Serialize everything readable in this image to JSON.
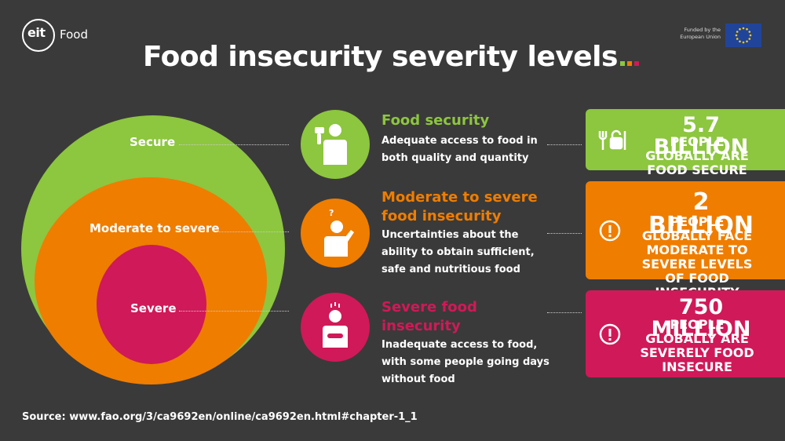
{
  "logo": {
    "mark": "eit",
    "text": "Food"
  },
  "eu": {
    "funded_text": "Funded by the European Union",
    "flag_icon": "eu-flag-icon"
  },
  "title": {
    "text": "Food insecurity severity levels",
    "dot_colors": [
      "#8dc63f",
      "#ef7d00",
      "#d01958"
    ]
  },
  "circles": {
    "secure": {
      "label": "Secure",
      "color": "#8dc63f"
    },
    "moderate": {
      "label": "Moderate to severe",
      "color": "#ef7d00"
    },
    "severe": {
      "label": "Severe",
      "color": "#d01958"
    }
  },
  "levels": [
    {
      "heading": "Food security",
      "description": "Adequate access to food in both quality and quantity",
      "icon": "person-eating-icon",
      "color": "#8dc63f"
    },
    {
      "heading": "Moderate to severe food insecurity",
      "description": "Uncertainties about the ability to obtain sufficient, safe and nutritious food",
      "icon": "person-questioning-icon",
      "color": "#ef7d00"
    },
    {
      "heading": "Severe food insecurity",
      "description": "Inadequate access to food, with some people going days without food",
      "icon": "person-hungry-icon",
      "color": "#d01958"
    }
  ],
  "stats": [
    {
      "big": "5.7 BILLION",
      "small": "PEOPLE GLOBALLY ARE FOOD SECURE",
      "icon": "fork-lock-icon"
    },
    {
      "big": "2 BILLION",
      "small": "PEOPLE GLOBALLY FACE MODERATE TO SEVERE LEVELS OF FOOD INSECURITY",
      "icon": "alert-icon"
    },
    {
      "big": "750 MILLION",
      "small": "PEOPLE GLOBALLY ARE SEVERELY FOOD INSECURE",
      "icon": "alert-icon"
    }
  ],
  "source": "Source: www.fao.org/3/ca9692en/online/ca9692en.html#chapter-1_1"
}
